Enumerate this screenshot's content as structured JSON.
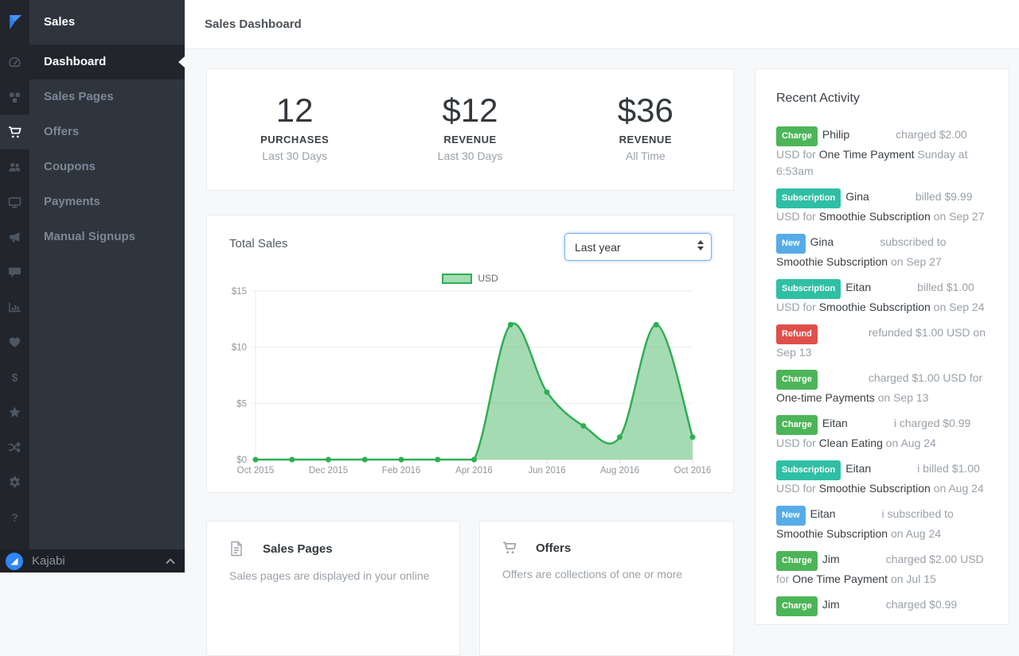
{
  "sidebar": {
    "section_title": "Sales",
    "rail_icons": [
      {
        "icon": "kajabi-logo",
        "active": false
      },
      {
        "icon": "dashboard-icon",
        "active": false
      },
      {
        "icon": "products-icon",
        "active": false
      },
      {
        "icon": "sales-cart-icon",
        "active": true
      },
      {
        "icon": "people-icon",
        "active": false
      },
      {
        "icon": "website-icon",
        "active": false
      },
      {
        "icon": "marketing-icon",
        "active": false
      },
      {
        "icon": "comments-icon",
        "active": false
      },
      {
        "icon": "analytics-icon",
        "active": false
      },
      {
        "icon": "likes-icon",
        "active": false
      },
      {
        "icon": "revenue-icon",
        "active": false
      },
      {
        "icon": "reviews-icon",
        "active": false
      },
      {
        "icon": "automations-icon",
        "active": false
      },
      {
        "icon": "settings-icon",
        "active": false
      },
      {
        "icon": "help-icon",
        "active": false
      }
    ],
    "menu_items": [
      {
        "label": "Dashboard",
        "active": true
      },
      {
        "label": "Sales Pages",
        "active": false
      },
      {
        "label": "Offers",
        "active": false
      },
      {
        "label": "Coupons",
        "active": false
      },
      {
        "label": "Payments",
        "active": false
      },
      {
        "label": "Manual Signups",
        "active": false
      }
    ],
    "footer": {
      "brand": "Kajabi"
    }
  },
  "header": {
    "title": "Sales Dashboard"
  },
  "stats": [
    {
      "value": "12",
      "label": "PURCHASES",
      "period": "Last 30 Days"
    },
    {
      "value": "$12",
      "label": "REVENUE",
      "period": "Last 30 Days"
    },
    {
      "value": "$36",
      "label": "REVENUE",
      "period": "All Time"
    }
  ],
  "chart_card": {
    "title": "Total Sales",
    "range_selector": "Last year"
  },
  "chart_data": {
    "type": "area",
    "title": "Total Sales",
    "x": [
      "Oct 2015",
      "Nov 2015",
      "Dec 2015",
      "Jan 2016",
      "Feb 2016",
      "Mar 2016",
      "Apr 2016",
      "May 2016",
      "Jun 2016",
      "Jul 2016",
      "Aug 2016",
      "Sep 2016",
      "Oct 2016"
    ],
    "series": [
      {
        "name": "USD",
        "values": [
          0,
          0,
          0,
          0,
          0,
          0,
          0,
          12,
          6,
          3,
          2,
          12,
          2
        ]
      }
    ],
    "ylim": [
      0,
      15
    ],
    "y_ticks": [
      {
        "v": 0,
        "label": "$0"
      },
      {
        "v": 5,
        "label": "$5"
      },
      {
        "v": 10,
        "label": "$10"
      },
      {
        "v": 15,
        "label": "$15"
      }
    ],
    "x_tick_indices": [
      0,
      2,
      4,
      6,
      8,
      10,
      12
    ],
    "grid": true,
    "legend_position": "top",
    "line_color": "#2fae55",
    "fill_color": "rgba(82,186,110,0.52)"
  },
  "activity": {
    "title": "Recent Activity",
    "items": [
      {
        "badge": {
          "label": "Charge",
          "type": "charge"
        },
        "segments": [
          {
            "style": "name",
            "text": "Philip"
          },
          {
            "style": "gap"
          },
          {
            "style": "muted",
            "text": "charged $2.00 USD for "
          },
          {
            "style": "strong",
            "text": "One Time Payment"
          },
          {
            "style": "muted",
            "text": " Sunday at 6:53am"
          }
        ]
      },
      {
        "badge": {
          "label": "Subscription",
          "type": "subscription"
        },
        "segments": [
          {
            "style": "name",
            "text": "Gina"
          },
          {
            "style": "gap"
          },
          {
            "style": "muted",
            "text": "billed $9.99 USD for "
          },
          {
            "style": "strong",
            "text": "Smoothie Subscription"
          },
          {
            "style": "muted",
            "text": " on Sep 27"
          }
        ]
      },
      {
        "badge": {
          "label": "New",
          "type": "new"
        },
        "segments": [
          {
            "style": "name",
            "text": "Gina"
          },
          {
            "style": "gap"
          },
          {
            "style": "muted",
            "text": "subscribed to "
          },
          {
            "style": "strong",
            "text": "Smoothie Subscription"
          },
          {
            "style": "muted",
            "text": " on Sep 27"
          }
        ]
      },
      {
        "badge": {
          "label": "Subscription",
          "type": "subscription"
        },
        "segments": [
          {
            "style": "name",
            "text": "Eitan"
          },
          {
            "style": "gap"
          },
          {
            "style": "muted",
            "text": "billed $1.00 USD "
          },
          {
            "style": "muted",
            "text": "for "
          },
          {
            "style": "strong",
            "text": "Smoothie Subscription"
          },
          {
            "style": "muted",
            "text": " on Sep 24"
          }
        ]
      },
      {
        "badge": {
          "label": "Refund",
          "type": "refund"
        },
        "segments": [
          {
            "style": "gap"
          },
          {
            "style": "muted",
            "text": "refunded $1.00 USD on Sep 13"
          }
        ]
      },
      {
        "badge": {
          "label": "Charge",
          "type": "charge"
        },
        "segments": [
          {
            "style": "gap"
          },
          {
            "style": "muted",
            "text": "charged $1.00 USD for "
          },
          {
            "style": "strong",
            "text": "One-time Payments"
          },
          {
            "style": "muted",
            "text": " on Sep 13"
          }
        ]
      },
      {
        "badge": {
          "label": "Charge",
          "type": "charge"
        },
        "segments": [
          {
            "style": "name",
            "text": "Eitan"
          },
          {
            "style": "gap"
          },
          {
            "style": "muted",
            "text": "i charged $0.99 USD for "
          },
          {
            "style": "strong",
            "text": "Clean Eating"
          },
          {
            "style": "muted",
            "text": " on Aug 24"
          }
        ]
      },
      {
        "badge": {
          "label": "Subscription",
          "type": "subscription"
        },
        "segments": [
          {
            "style": "name",
            "text": "Eitan"
          },
          {
            "style": "gap"
          },
          {
            "style": "muted",
            "text": "i billed $1.00 USD for "
          },
          {
            "style": "strong",
            "text": "Smoothie Subscription"
          },
          {
            "style": "muted",
            "text": " on Aug 24"
          }
        ]
      },
      {
        "badge": {
          "label": "New",
          "type": "new"
        },
        "segments": [
          {
            "style": "name",
            "text": "Eitan"
          },
          {
            "style": "gap"
          },
          {
            "style": "muted",
            "text": "i subscribed to "
          },
          {
            "style": "strong",
            "text": "Smoothie Subscription"
          },
          {
            "style": "muted",
            "text": " on Aug 24"
          }
        ]
      },
      {
        "badge": {
          "label": "Charge",
          "type": "charge"
        },
        "segments": [
          {
            "style": "name",
            "text": "Jim"
          },
          {
            "style": "gap"
          },
          {
            "style": "muted",
            "text": "charged $2.00 USD for "
          },
          {
            "style": "strong",
            "text": "One Time Payment"
          },
          {
            "style": "muted",
            "text": " on Jul 15"
          }
        ]
      },
      {
        "badge": {
          "label": "Charge",
          "type": "charge"
        },
        "segments": [
          {
            "style": "name",
            "text": "Jim"
          },
          {
            "style": "gap"
          },
          {
            "style": "muted",
            "text": "charged $0.99"
          }
        ]
      }
    ]
  },
  "promo_cards": [
    {
      "icon": "document-icon",
      "title": "Sales Pages",
      "description": "Sales pages are displayed in your online"
    },
    {
      "icon": "cart-icon",
      "title": "Offers",
      "description": "Offers are collections of one or more"
    }
  ],
  "colors": {
    "accent_blue": "#2f86f6",
    "chart_green": "#2fae55",
    "badges": {
      "charge": "#4cb558",
      "subscription": "#2fbfa5",
      "new": "#57ace8",
      "refund": "#e0504a"
    }
  }
}
